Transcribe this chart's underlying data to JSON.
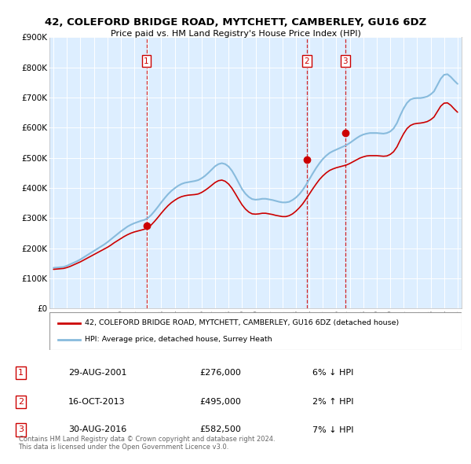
{
  "title": "42, COLEFORD BRIDGE ROAD, MYTCHETT, CAMBERLEY, GU16 6DZ",
  "subtitle": "Price paid vs. HM Land Registry's House Price Index (HPI)",
  "bg_color": "#ddeeff",
  "hpi_color": "#88bbdd",
  "price_color": "#cc0000",
  "vline_color": "#cc0000",
  "ylim": [
    0,
    900000
  ],
  "yticks": [
    0,
    100000,
    200000,
    300000,
    400000,
    500000,
    600000,
    700000,
    800000,
    900000
  ],
  "ytick_labels": [
    "£0",
    "£100K",
    "£200K",
    "£300K",
    "£400K",
    "£500K",
    "£600K",
    "£700K",
    "£800K",
    "£900K"
  ],
  "xlim_start": 1994.7,
  "xlim_end": 2025.3,
  "xticks": [
    1995,
    1996,
    1997,
    1998,
    1999,
    2000,
    2001,
    2002,
    2003,
    2004,
    2005,
    2006,
    2007,
    2008,
    2009,
    2010,
    2011,
    2012,
    2013,
    2014,
    2015,
    2016,
    2017,
    2018,
    2019,
    2020,
    2021,
    2022,
    2023,
    2024,
    2025
  ],
  "sale_dates": [
    2001.9,
    2013.8,
    2016.67
  ],
  "sale_prices": [
    276000,
    495000,
    582500
  ],
  "sale_labels": [
    "1",
    "2",
    "3"
  ],
  "legend_price_label": "42, COLEFORD BRIDGE ROAD, MYTCHETT, CAMBERLEY, GU16 6DZ (detached house)",
  "legend_hpi_label": "HPI: Average price, detached house, Surrey Heath",
  "table_data": [
    [
      "1",
      "29-AUG-2001",
      "£276,000",
      "6% ↓ HPI"
    ],
    [
      "2",
      "16-OCT-2013",
      "£495,000",
      "2% ↑ HPI"
    ],
    [
      "3",
      "30-AUG-2016",
      "£582,500",
      "7% ↓ HPI"
    ]
  ],
  "footer": "Contains HM Land Registry data © Crown copyright and database right 2024.\nThis data is licensed under the Open Government Licence v3.0.",
  "hpi_x": [
    1995.0,
    1995.25,
    1995.5,
    1995.75,
    1996.0,
    1996.25,
    1996.5,
    1996.75,
    1997.0,
    1997.25,
    1997.5,
    1997.75,
    1998.0,
    1998.25,
    1998.5,
    1998.75,
    1999.0,
    1999.25,
    1999.5,
    1999.75,
    2000.0,
    2000.25,
    2000.5,
    2000.75,
    2001.0,
    2001.25,
    2001.5,
    2001.75,
    2002.0,
    2002.25,
    2002.5,
    2002.75,
    2003.0,
    2003.25,
    2003.5,
    2003.75,
    2004.0,
    2004.25,
    2004.5,
    2004.75,
    2005.0,
    2005.25,
    2005.5,
    2005.75,
    2006.0,
    2006.25,
    2006.5,
    2006.75,
    2007.0,
    2007.25,
    2007.5,
    2007.75,
    2008.0,
    2008.25,
    2008.5,
    2008.75,
    2009.0,
    2009.25,
    2009.5,
    2009.75,
    2010.0,
    2010.25,
    2010.5,
    2010.75,
    2011.0,
    2011.25,
    2011.5,
    2011.75,
    2012.0,
    2012.25,
    2012.5,
    2012.75,
    2013.0,
    2013.25,
    2013.5,
    2013.75,
    2014.0,
    2014.25,
    2014.5,
    2014.75,
    2015.0,
    2015.25,
    2015.5,
    2015.75,
    2016.0,
    2016.25,
    2016.5,
    2016.75,
    2017.0,
    2017.25,
    2017.5,
    2017.75,
    2018.0,
    2018.25,
    2018.5,
    2018.75,
    2019.0,
    2019.25,
    2019.5,
    2019.75,
    2020.0,
    2020.25,
    2020.5,
    2020.75,
    2021.0,
    2021.25,
    2021.5,
    2021.75,
    2022.0,
    2022.25,
    2022.5,
    2022.75,
    2023.0,
    2023.25,
    2023.5,
    2023.75,
    2024.0,
    2024.25,
    2024.5,
    2024.75,
    2025.0
  ],
  "hpi_y": [
    135000,
    136000,
    137000,
    138000,
    142000,
    147000,
    152000,
    157000,
    163000,
    170000,
    177000,
    184000,
    191000,
    198000,
    205000,
    212000,
    220000,
    229000,
    238000,
    247000,
    256000,
    264000,
    272000,
    278000,
    283000,
    287000,
    291000,
    294000,
    300000,
    310000,
    323000,
    337000,
    352000,
    366000,
    379000,
    390000,
    399000,
    407000,
    413000,
    417000,
    419000,
    421000,
    423000,
    426000,
    432000,
    440000,
    450000,
    461000,
    472000,
    479000,
    482000,
    479000,
    471000,
    457000,
    438000,
    417000,
    396000,
    381000,
    370000,
    363000,
    361000,
    362000,
    364000,
    364000,
    362000,
    360000,
    357000,
    354000,
    352000,
    352000,
    354000,
    360000,
    368000,
    379000,
    393000,
    410000,
    429000,
    448000,
    466000,
    482000,
    496000,
    507000,
    516000,
    522000,
    527000,
    532000,
    537000,
    542000,
    549000,
    557000,
    565000,
    572000,
    577000,
    580000,
    582000,
    582000,
    582000,
    581000,
    580000,
    582000,
    587000,
    597000,
    615000,
    641000,
    664000,
    682000,
    693000,
    697000,
    698000,
    698000,
    700000,
    703000,
    710000,
    720000,
    741000,
    762000,
    775000,
    777000,
    768000,
    756000,
    745000
  ],
  "price_x": [
    1995.0,
    1995.25,
    1995.5,
    1995.75,
    1996.0,
    1996.25,
    1996.5,
    1996.75,
    1997.0,
    1997.25,
    1997.5,
    1997.75,
    1998.0,
    1998.25,
    1998.5,
    1998.75,
    1999.0,
    1999.25,
    1999.5,
    1999.75,
    2000.0,
    2000.25,
    2000.5,
    2000.75,
    2001.0,
    2001.25,
    2001.5,
    2001.75,
    2002.0,
    2002.25,
    2002.5,
    2002.75,
    2003.0,
    2003.25,
    2003.5,
    2003.75,
    2004.0,
    2004.25,
    2004.5,
    2004.75,
    2005.0,
    2005.25,
    2005.5,
    2005.75,
    2006.0,
    2006.25,
    2006.5,
    2006.75,
    2007.0,
    2007.25,
    2007.5,
    2007.75,
    2008.0,
    2008.25,
    2008.5,
    2008.75,
    2009.0,
    2009.25,
    2009.5,
    2009.75,
    2010.0,
    2010.25,
    2010.5,
    2010.75,
    2011.0,
    2011.25,
    2011.5,
    2011.75,
    2012.0,
    2012.25,
    2012.5,
    2012.75,
    2013.0,
    2013.25,
    2013.5,
    2013.75,
    2014.0,
    2014.25,
    2014.5,
    2014.75,
    2015.0,
    2015.25,
    2015.5,
    2015.75,
    2016.0,
    2016.25,
    2016.5,
    2016.75,
    2017.0,
    2017.25,
    2017.5,
    2017.75,
    2018.0,
    2018.25,
    2018.5,
    2018.75,
    2019.0,
    2019.25,
    2019.5,
    2019.75,
    2020.0,
    2020.25,
    2020.5,
    2020.75,
    2021.0,
    2021.25,
    2021.5,
    2021.75,
    2022.0,
    2022.25,
    2022.5,
    2022.75,
    2023.0,
    2023.25,
    2023.5,
    2023.75,
    2024.0,
    2024.25,
    2024.5,
    2024.75,
    2025.0
  ],
  "price_y": [
    130000,
    131000,
    132000,
    133000,
    136000,
    140000,
    145000,
    150000,
    155000,
    161000,
    167000,
    173000,
    179000,
    185000,
    191000,
    197000,
    203000,
    210000,
    218000,
    225000,
    232000,
    239000,
    245000,
    250000,
    254000,
    257000,
    260000,
    263000,
    268000,
    277000,
    289000,
    302000,
    316000,
    329000,
    341000,
    351000,
    359000,
    366000,
    371000,
    374000,
    376000,
    377000,
    378000,
    380000,
    385000,
    392000,
    400000,
    409000,
    418000,
    424000,
    426000,
    422000,
    413000,
    399000,
    381000,
    362000,
    344000,
    330000,
    320000,
    314000,
    313000,
    314000,
    316000,
    316000,
    314000,
    312000,
    309000,
    307000,
    305000,
    305000,
    308000,
    314000,
    323000,
    334000,
    347000,
    363000,
    380000,
    397000,
    413000,
    428000,
    440000,
    450000,
    458000,
    463000,
    467000,
    470000,
    473000,
    476000,
    481000,
    487000,
    493000,
    499000,
    503000,
    506000,
    507000,
    507000,
    507000,
    506000,
    505000,
    506000,
    511000,
    520000,
    536000,
    559000,
    580000,
    597000,
    607000,
    612000,
    614000,
    615000,
    617000,
    620000,
    626000,
    635000,
    653000,
    671000,
    681000,
    682000,
    674000,
    662000,
    651000
  ]
}
